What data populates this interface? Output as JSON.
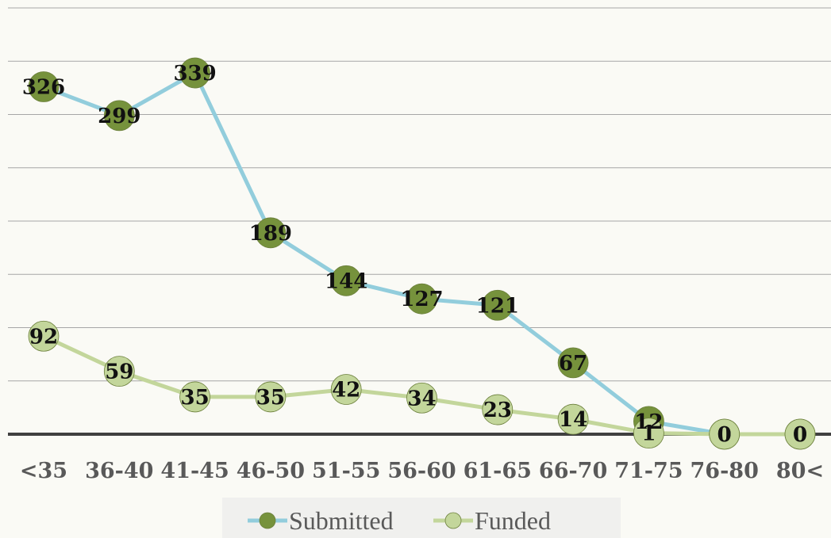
{
  "chart_data": {
    "type": "line",
    "categories": [
      "<35",
      "36-40",
      "41-45",
      "46-50",
      "51-55",
      "56-60",
      "61-65",
      "66-70",
      "71-75",
      "76-80",
      "80<"
    ],
    "ylim": [
      0,
      400
    ],
    "grid": true,
    "legend_position": "bottom",
    "series": [
      {
        "name": "Submitted",
        "values": [
          326,
          299,
          339,
          189,
          144,
          127,
          121,
          67,
          12,
          0,
          0
        ],
        "line_color": "#92cddc",
        "marker_color": "#76923c"
      },
      {
        "name": "Funded",
        "values": [
          92,
          59,
          35,
          35,
          42,
          34,
          23,
          14,
          1,
          0,
          0
        ],
        "line_color": "#c3d69b",
        "marker_color": "#c3d69b"
      }
    ]
  }
}
